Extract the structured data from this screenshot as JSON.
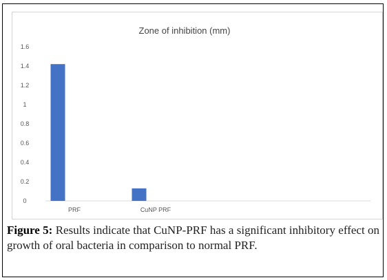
{
  "chart_data": {
    "type": "bar",
    "title": "Zone of inhibition (mm)",
    "categories": [
      "PRF",
      "CuNP PRF"
    ],
    "values": [
      1.42,
      0.13
    ],
    "xlabel": "",
    "ylabel": "",
    "ylim": [
      0,
      1.6
    ],
    "yticks": [
      "0",
      "0.2",
      "0.4",
      "0.6",
      "0.8",
      "1",
      "1.2",
      "1.4",
      "1.6"
    ],
    "grid": false,
    "legend": "none",
    "bar_color": "#4472c4"
  },
  "caption": {
    "label": "Figure 5:",
    "text": "Results indicate that CuNP-PRF has a significant inhibitory effect on growth of oral bacteria in comparison to normal PRF."
  }
}
